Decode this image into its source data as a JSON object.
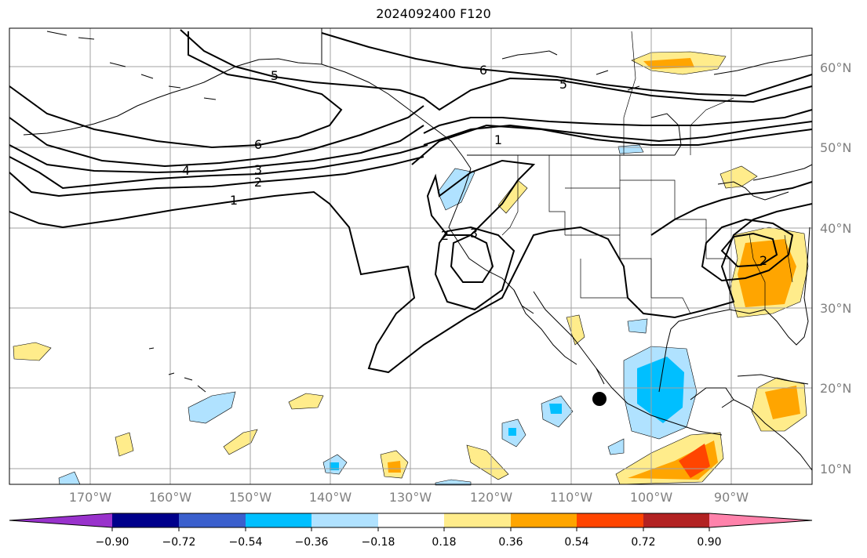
{
  "title": "2024092400 F120",
  "lat_labels": [
    "60°N",
    "50°N",
    "40°N",
    "30°N",
    "20°N",
    "10°N"
  ],
  "lon_labels": [
    "170°W",
    "160°W",
    "150°W",
    "140°W",
    "130°W",
    "120°W",
    "110°W",
    "100°W",
    "90°W"
  ],
  "colorbar": {
    "ticks": [
      "−0.90",
      "−0.72",
      "−0.54",
      "−0.36",
      "−0.18",
      "0.18",
      "0.36",
      "0.54",
      "0.72",
      "0.90"
    ],
    "colors": [
      "#9932cc",
      "#00008b",
      "#3a5fcd",
      "#00bfff",
      "#b0e2ff",
      "#ffffff",
      "#ffec8b",
      "#ffa500",
      "#ff4500",
      "#b22222",
      "#ff82ab"
    ]
  },
  "contour_labels": [
    "6",
    "5",
    "1",
    "6",
    "5",
    "4",
    "3",
    "2",
    "1",
    "2",
    "3",
    "2"
  ],
  "marker": "storm-center-marker"
}
